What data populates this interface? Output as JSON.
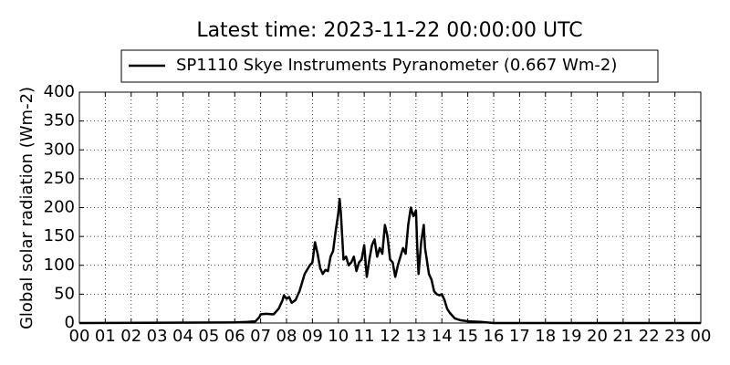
{
  "chart_data": {
    "type": "line",
    "title": "Latest time: 2023-11-22 00:00:00 UTC",
    "y_label": "Global solar radiation (Wm-2)",
    "legend_position": "top",
    "grid": true,
    "xlim": [
      0,
      24
    ],
    "xticks": [
      {
        "value": 0,
        "label": "00"
      },
      {
        "value": 1,
        "label": "01"
      },
      {
        "value": 2,
        "label": "02"
      },
      {
        "value": 3,
        "label": "03"
      },
      {
        "value": 4,
        "label": "04"
      },
      {
        "value": 5,
        "label": "05"
      },
      {
        "value": 6,
        "label": "06"
      },
      {
        "value": 7,
        "label": "07"
      },
      {
        "value": 8,
        "label": "08"
      },
      {
        "value": 9,
        "label": "09"
      },
      {
        "value": 10,
        "label": "10"
      },
      {
        "value": 11,
        "label": "11"
      },
      {
        "value": 12,
        "label": "12"
      },
      {
        "value": 13,
        "label": "13"
      },
      {
        "value": 14,
        "label": "14"
      },
      {
        "value": 15,
        "label": "15"
      },
      {
        "value": 16,
        "label": "16"
      },
      {
        "value": 17,
        "label": "17"
      },
      {
        "value": 18,
        "label": "18"
      },
      {
        "value": 19,
        "label": "19"
      },
      {
        "value": 20,
        "label": "20"
      },
      {
        "value": 21,
        "label": "21"
      },
      {
        "value": 22,
        "label": "22"
      },
      {
        "value": 23,
        "label": "23"
      },
      {
        "value": 24,
        "label": "00"
      }
    ],
    "ylim": [
      0,
      400
    ],
    "yticks": [
      0,
      50,
      100,
      150,
      200,
      250,
      300,
      350,
      400
    ],
    "x": [
      0,
      6,
      6.5,
      6.8,
      6.95,
      7,
      7.2,
      7.5,
      7.7,
      7.85,
      7.9,
      8,
      8.1,
      8.2,
      8.35,
      8.5,
      8.7,
      8.9,
      9,
      9.1,
      9.2,
      9.3,
      9.4,
      9.5,
      9.6,
      9.7,
      9.8,
      9.9,
      10,
      10.05,
      10.1,
      10.2,
      10.3,
      10.4,
      10.5,
      10.6,
      10.7,
      10.8,
      10.9,
      11,
      11.1,
      11.2,
      11.3,
      11.4,
      11.5,
      11.6,
      11.7,
      11.8,
      11.9,
      12,
      12.1,
      12.2,
      12.3,
      12.4,
      12.5,
      12.6,
      12.7,
      12.8,
      12.9,
      13,
      13.05,
      13.1,
      13.2,
      13.3,
      13.35,
      13.5,
      13.6,
      13.7,
      13.8,
      13.9,
      14,
      14.1,
      14.2,
      14.3,
      14.5,
      14.7,
      15,
      15.5,
      16,
      24
    ],
    "series": [
      {
        "name": "SP1110 Skye Instruments Pyranometer (0.667 Wm-2)",
        "color": "#000000",
        "values": [
          0,
          1,
          2,
          3,
          10,
          15,
          16,
          15,
          25,
          40,
          48,
          42,
          45,
          35,
          40,
          55,
          85,
          100,
          105,
          140,
          120,
          95,
          85,
          92,
          90,
          115,
          125,
          160,
          190,
          215,
          190,
          110,
          115,
          100,
          105,
          115,
          90,
          105,
          110,
          135,
          80,
          110,
          135,
          145,
          115,
          130,
          120,
          170,
          150,
          110,
          105,
          80,
          100,
          115,
          130,
          120,
          170,
          200,
          185,
          195,
          130,
          85,
          140,
          170,
          130,
          85,
          75,
          55,
          50,
          48,
          50,
          40,
          25,
          18,
          8,
          5,
          3,
          2,
          0,
          0
        ]
      }
    ]
  }
}
